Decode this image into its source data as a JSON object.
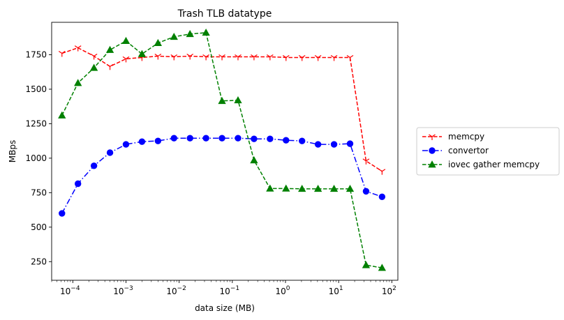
{
  "chart_data": {
    "type": "line",
    "title": "Trash TLB datatype",
    "xlabel": "data size (MB)",
    "ylabel": "MBps",
    "xscale": "log",
    "xlim": [
      4e-05,
      130
    ],
    "ylim": [
      115,
      1985
    ],
    "x_tick_labels": [
      {
        "base": "10",
        "exp": "−4"
      },
      {
        "base": "10",
        "exp": "−3"
      },
      {
        "base": "10",
        "exp": "−2"
      },
      {
        "base": "10",
        "exp": "−1"
      },
      {
        "base": "10",
        "exp": "0"
      },
      {
        "base": "10",
        "exp": "1"
      },
      {
        "base": "10",
        "exp": "2"
      }
    ],
    "x_ticks": [
      0.0001,
      0.001,
      0.01,
      0.1,
      1,
      10,
      100
    ],
    "y_ticks": [
      250,
      500,
      750,
      1000,
      1250,
      1500,
      1750
    ],
    "y_tick_labels": [
      "250",
      "500",
      "750",
      "1000",
      "1250",
      "1500",
      "1750"
    ],
    "grid": false,
    "legend_position": "right-outside",
    "x": [
      6.25e-05,
      0.000125,
      0.00025,
      0.0005,
      0.001,
      0.002,
      0.004,
      0.008,
      0.016,
      0.032,
      0.064,
      0.128,
      0.256,
      0.512,
      1.024,
      2.048,
      4.096,
      8.192,
      16.384,
      32.768,
      65.536
    ],
    "series": [
      {
        "name": "memcpy",
        "color": "#ff0000",
        "linestyle": "dashed",
        "marker": "tri_down",
        "values": [
          1760,
          1800,
          1740,
          1665,
          1720,
          1730,
          1740,
          1735,
          1740,
          1735,
          1735,
          1735,
          1735,
          1735,
          1730,
          1730,
          1730,
          1730,
          1730,
          980,
          905
        ]
      },
      {
        "name": "convertor",
        "color": "#0000ff",
        "linestyle": "dashdot",
        "marker": "circle",
        "values": [
          600,
          815,
          945,
          1040,
          1100,
          1120,
          1125,
          1145,
          1145,
          1145,
          1145,
          1145,
          1140,
          1140,
          1130,
          1125,
          1100,
          1100,
          1105,
          760,
          720
        ]
      },
      {
        "name": "iovec gather memcpy",
        "color": "#008000",
        "linestyle": "dashed",
        "marker": "triangle",
        "values": [
          1310,
          1545,
          1655,
          1785,
          1850,
          1755,
          1835,
          1880,
          1900,
          1910,
          1415,
          1420,
          985,
          780,
          780,
          778,
          778,
          778,
          778,
          225,
          205
        ]
      }
    ]
  }
}
